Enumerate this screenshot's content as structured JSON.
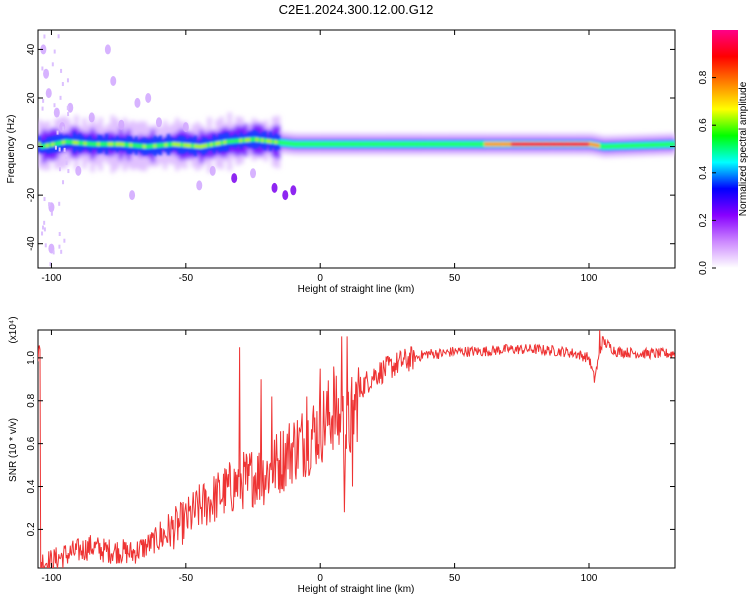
{
  "title": "C2E1.2024.300.12.00.G12",
  "chart_data": [
    {
      "type": "heatmap",
      "xlabel": "Height of straight line (km)",
      "ylabel": "Frequency (Hz)",
      "xlim": [
        -105,
        132
      ],
      "ylim": [
        -50,
        48
      ],
      "x_ticks": [
        -100,
        -50,
        0,
        50,
        100
      ],
      "y_ticks": [
        -40,
        -20,
        0,
        20,
        40
      ],
      "colorbar": {
        "label": "Normalized spectral amplitude",
        "range": [
          0,
          1
        ],
        "ticks": [
          "0.0",
          "0.2",
          "0.4",
          "0.6",
          "0.8"
        ],
        "stops": [
          "#ffffff",
          "#cc88ff",
          "#8800ff",
          "#0000ff",
          "#00ffff",
          "#00ff00",
          "#ffff00",
          "#ff8000",
          "#ff0000",
          "#ff0088"
        ]
      },
      "ridge": {
        "description": "dominant Doppler frequency vs height",
        "points": [
          {
            "x": -104,
            "f": 0
          },
          {
            "x": -95,
            "f": 2
          },
          {
            "x": -85,
            "f": 1
          },
          {
            "x": -75,
            "f": 1
          },
          {
            "x": -65,
            "f": 0
          },
          {
            "x": -55,
            "f": 1
          },
          {
            "x": -45,
            "f": 0
          },
          {
            "x": -35,
            "f": 2
          },
          {
            "x": -25,
            "f": 3
          },
          {
            "x": -18,
            "f": 2
          },
          {
            "x": -10,
            "f": 1
          },
          {
            "x": 0,
            "f": 1
          },
          {
            "x": 10,
            "f": 1
          },
          {
            "x": 30,
            "f": 1
          },
          {
            "x": 60,
            "f": 1
          },
          {
            "x": 90,
            "f": 1
          },
          {
            "x": 100,
            "f": 1
          },
          {
            "x": 105,
            "f": 0
          },
          {
            "x": 132,
            "f": 1
          }
        ]
      },
      "scatter_noise": [
        {
          "x": -103,
          "f": 40
        },
        {
          "x": -102,
          "f": 30
        },
        {
          "x": -101,
          "f": 22
        },
        {
          "x": -100,
          "f": -25
        },
        {
          "x": -100,
          "f": -42
        },
        {
          "x": -98,
          "f": 14
        },
        {
          "x": -96,
          "f": 8
        },
        {
          "x": -93,
          "f": 16
        },
        {
          "x": -90,
          "f": -10
        },
        {
          "x": -85,
          "f": 12
        },
        {
          "x": -79,
          "f": 40
        },
        {
          "x": -77,
          "f": 27
        },
        {
          "x": -74,
          "f": 9
        },
        {
          "x": -70,
          "f": -20
        },
        {
          "x": -68,
          "f": 18
        },
        {
          "x": -64,
          "f": 20
        },
        {
          "x": -60,
          "f": 10
        },
        {
          "x": -50,
          "f": 8
        },
        {
          "x": -45,
          "f": -16
        },
        {
          "x": -40,
          "f": -10
        },
        {
          "x": -32,
          "f": -13
        },
        {
          "x": -25,
          "f": -11
        },
        {
          "x": -17,
          "f": -17
        },
        {
          "x": -13,
          "f": -20
        },
        {
          "x": -10,
          "f": -18
        }
      ]
    },
    {
      "type": "line",
      "xlabel": "Height of straight line (km)",
      "ylabel": "SNR (10 * v/v)",
      "y_multiplier": "(x10⁴)",
      "xlim": [
        -105,
        132
      ],
      "ylim": [
        0.02,
        1.13
      ],
      "x_ticks": [
        -100,
        -50,
        0,
        50,
        100
      ],
      "y_ticks": [
        0.2,
        0.4,
        0.6,
        0.8,
        1.0
      ],
      "series": [
        {
          "name": "SNR",
          "color": "#ee3333",
          "x": [
            -104,
            -100,
            -95,
            -90,
            -85,
            -80,
            -75,
            -70,
            -65,
            -60,
            -55,
            -50,
            -45,
            -40,
            -35,
            -30,
            -25,
            -20,
            -15,
            -10,
            -5,
            0,
            5,
            10,
            15,
            20,
            25,
            30,
            35,
            40,
            45,
            50,
            60,
            70,
            80,
            90,
            95,
            100,
            102,
            105,
            110,
            120,
            132
          ],
          "values": [
            0.05,
            0.05,
            0.08,
            0.1,
            0.12,
            0.1,
            0.1,
            0.09,
            0.12,
            0.16,
            0.2,
            0.24,
            0.3,
            0.34,
            0.38,
            0.42,
            0.45,
            0.46,
            0.52,
            0.58,
            0.62,
            0.68,
            0.75,
            0.65,
            0.86,
            0.92,
            0.95,
            0.98,
            1.0,
            1.02,
            1.02,
            1.03,
            1.03,
            1.04,
            1.04,
            1.03,
            1.02,
            1.0,
            0.9,
            1.08,
            1.03,
            1.02,
            1.02
          ]
        }
      ],
      "spikes": [
        {
          "x": -30,
          "value": 1.05
        },
        {
          "x": -27,
          "value": 0.38
        },
        {
          "x": -22,
          "value": 0.9
        },
        {
          "x": -18,
          "value": 0.82
        },
        {
          "x": -12,
          "value": 0.48
        },
        {
          "x": -5,
          "value": 0.82
        },
        {
          "x": 0,
          "value": 0.95
        },
        {
          "x": 5,
          "value": 0.96
        },
        {
          "x": 8,
          "value": 1.1
        },
        {
          "x": 9,
          "value": 0.28
        },
        {
          "x": 10,
          "value": 1.1
        },
        {
          "x": 12,
          "value": 0.4
        },
        {
          "x": 104,
          "value": 1.13
        }
      ]
    }
  ]
}
